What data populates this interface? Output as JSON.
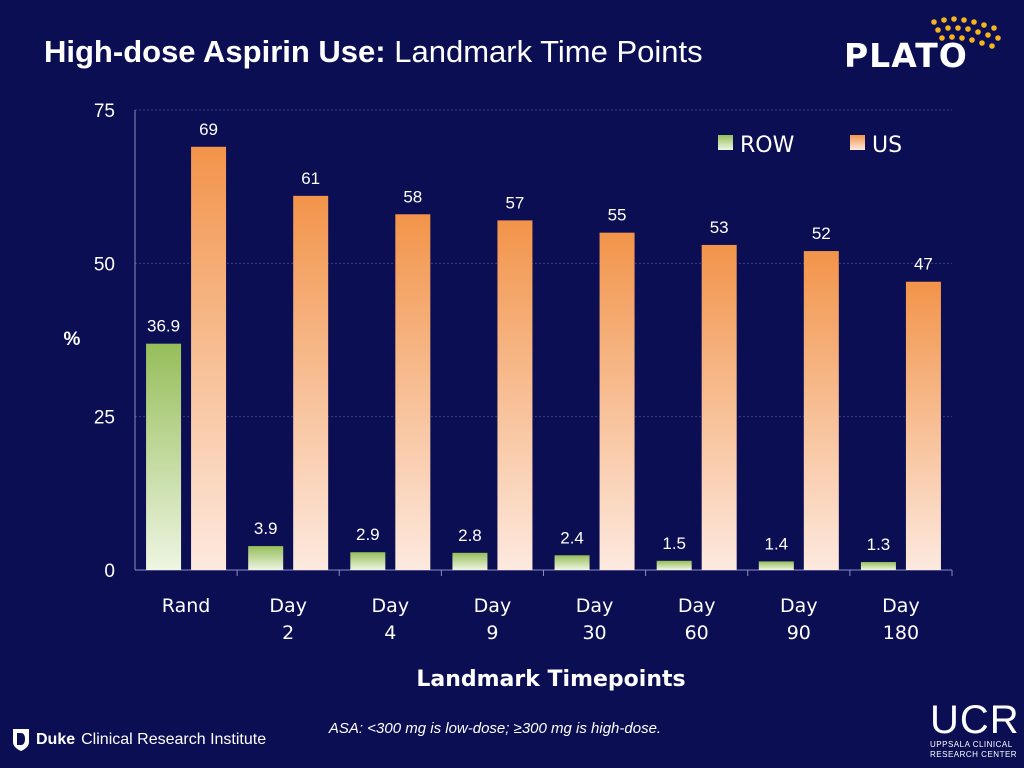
{
  "header": {
    "title_bold": "High-dose Aspirin Use:",
    "title_regular": "Landmark Time Points"
  },
  "logos": {
    "plato": "PLATO",
    "duke_bold": "Duke",
    "duke_rest": "Clinical Research Institute",
    "ucr": "UCR",
    "ucr_line1": "UPPSALA CLINICAL",
    "ucr_line2": "RESEARCH CENTER"
  },
  "footnote": "ASA: <300 mg is low-dose; ≥300 mg is high-dose.",
  "colors": {
    "background": "#0b0e52",
    "row_top": "#96be5a",
    "row_bottom": "#eef5e2",
    "us_top": "#f2944a",
    "us_bottom": "#fde9df",
    "plato_dots": "#f4b41e"
  },
  "chart_data": {
    "type": "bar",
    "categories": [
      [
        "Rand"
      ],
      [
        "Day",
        "2"
      ],
      [
        "Day",
        "4"
      ],
      [
        "Day",
        "9"
      ],
      [
        "Day",
        "30"
      ],
      [
        "Day",
        "60"
      ],
      [
        "Day",
        "90"
      ],
      [
        "Day",
        "180"
      ]
    ],
    "series": [
      {
        "name": "ROW",
        "values": [
          36.9,
          3.9,
          2.9,
          2.8,
          2.4,
          1.5,
          1.4,
          1.3
        ],
        "labels": [
          "36.9",
          "3.9",
          "2.9",
          "2.8",
          "2.4",
          "1.5",
          "1.4",
          "1.3"
        ]
      },
      {
        "name": "US",
        "values": [
          69,
          61,
          58,
          57,
          55,
          53,
          52,
          47
        ],
        "labels": [
          "69",
          "61",
          "58",
          "57",
          "55",
          "53",
          "52",
          "47"
        ]
      }
    ],
    "yticks": [
      "0",
      "25",
      "50",
      "75"
    ],
    "ylim": [
      0,
      75
    ],
    "ylabel": "%",
    "xlabel": "Landmark Timepoints",
    "grid": true,
    "legend_position": "top-right"
  }
}
